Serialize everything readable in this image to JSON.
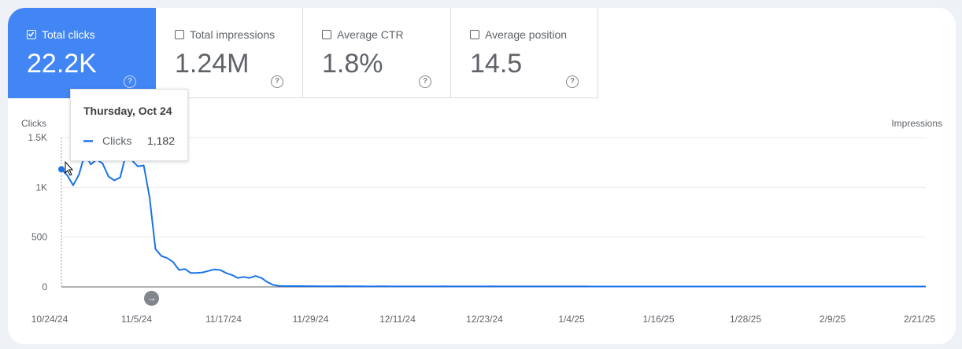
{
  "metrics": [
    {
      "label": "Total clicks",
      "value": "22.2K",
      "checked": true
    },
    {
      "label": "Total impressions",
      "value": "1.24M",
      "checked": false
    },
    {
      "label": "Average CTR",
      "value": "1.8%",
      "checked": false
    },
    {
      "label": "Average position",
      "value": "14.5",
      "checked": false
    }
  ],
  "help_icon": "help-circle-icon",
  "tooltip": {
    "date": "Thursday, Oct 24",
    "series": "Clicks",
    "value": "1,182"
  },
  "colors": {
    "accent": "#4285f4",
    "line": "#1a73e8"
  },
  "chart_data": {
    "type": "line",
    "ylabel": "Clicks",
    "y2label": "Impressions",
    "ylim": [
      0,
      1500
    ],
    "y_ticks": [
      "0",
      "500",
      "1K",
      "1.5K"
    ],
    "x_ticks": [
      "10/24/24",
      "11/5/24",
      "11/17/24",
      "11/29/24",
      "12/11/24",
      "12/23/24",
      "1/4/25",
      "1/16/25",
      "1/28/25",
      "2/9/25",
      "2/21/25"
    ],
    "grid": true,
    "series": [
      {
        "name": "Clicks",
        "x_start": "10/24/24",
        "values": [
          1182,
          1120,
          1020,
          1130,
          1340,
          1230,
          1280,
          1240,
          1110,
          1070,
          1100,
          1340,
          1270,
          1210,
          1220,
          900,
          380,
          310,
          290,
          250,
          170,
          180,
          140,
          140,
          145,
          160,
          175,
          170,
          140,
          120,
          90,
          100,
          90,
          110,
          90,
          50,
          20,
          10,
          8,
          8,
          8,
          8,
          7,
          7,
          6,
          6,
          6,
          7,
          7,
          6,
          6,
          6,
          5,
          5,
          6,
          6,
          5,
          5,
          5,
          5,
          5,
          5,
          5,
          5,
          5,
          6,
          5,
          5,
          5,
          5,
          5,
          5,
          5,
          6,
          5,
          5,
          5,
          5,
          5,
          5,
          5,
          5,
          5,
          5,
          5,
          5,
          5,
          5,
          5,
          5,
          4,
          4,
          4,
          4,
          4,
          4,
          4,
          4,
          4,
          4,
          4,
          4,
          4,
          4,
          4,
          4,
          4,
          4,
          4,
          4,
          4,
          4,
          4,
          4,
          4,
          4,
          4,
          4,
          4,
          4,
          4,
          4,
          4,
          4,
          4,
          4,
          4,
          4,
          4,
          4,
          4,
          4,
          4,
          4,
          4,
          4,
          4,
          4,
          4,
          4,
          4,
          4,
          4,
          4,
          4,
          4,
          4,
          4
        ]
      }
    ]
  }
}
